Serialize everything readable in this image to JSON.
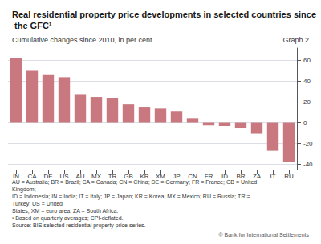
{
  "chart_data": {
    "type": "bar",
    "title": "Real residential property price developments in selected countries since the GFC¹",
    "subtitle": "Cumulative changes since 2010, in per cent",
    "annotations": [
      "Graph 2",
      "AU = Australia; BR = Brazil; CA = Canada; CN = China; DE = Germany; FR = France; GB = United Kingdom;",
      "ID = Indonesia; IN = India; IT = Italy; JP = Japan; KR = Korea; MX = Mexico; RU = Russia; TR = Turkey; US = United",
      "States; XM = euro area; ZA = South Africa.",
      "¹ Based on quarterly averages; CPI-deflated.",
      "Source: BIS selected residential property price series.",
      "© Bank for International Settlements"
    ],
    "categories": [
      "IN",
      "CA",
      "DE",
      "US",
      "AU",
      "MX",
      "TR",
      "GB",
      "KR",
      "XM",
      "JP",
      "CN",
      "FR",
      "ID",
      "BR",
      "ZA",
      "IT",
      "RU"
    ],
    "values": [
      62,
      50,
      46,
      44,
      27,
      25,
      24,
      18,
      15,
      14,
      11,
      4,
      -2,
      -3,
      -5,
      -10,
      -27,
      -38
    ],
    "color": "#c8787e",
    "ylim": [
      -45,
      72
    ],
    "yticks": [
      -40,
      -20,
      0,
      20,
      40,
      60
    ],
    "grid": true
  }
}
